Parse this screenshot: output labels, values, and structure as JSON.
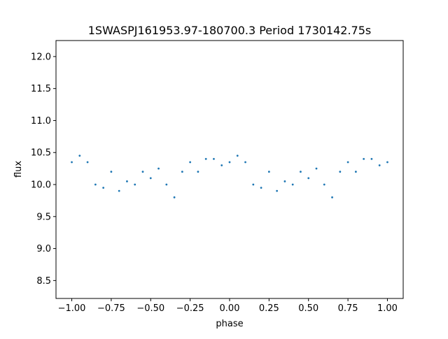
{
  "chart_data": {
    "type": "scatter",
    "title": "1SWASPJ161953.97-180700.3 Period 1730142.75s",
    "xlabel": "phase",
    "ylabel": "flux",
    "xlim": [
      -1.1,
      1.1
    ],
    "ylim": [
      8.22,
      12.25
    ],
    "x_ticks": [
      -1.0,
      -0.75,
      -0.5,
      -0.25,
      0.0,
      0.25,
      0.5,
      0.75,
      1.0
    ],
    "x_tick_labels": [
      "−1.00",
      "−0.75",
      "−0.50",
      "−0.25",
      "0.00",
      "0.25",
      "0.50",
      "0.75",
      "1.00"
    ],
    "y_ticks": [
      8.5,
      9.0,
      9.5,
      10.0,
      10.5,
      11.0,
      11.5,
      12.0
    ],
    "y_tick_labels": [
      "8.5",
      "9.0",
      "9.5",
      "10.0",
      "10.5",
      "11.0",
      "11.5",
      "12.0"
    ],
    "grid": false,
    "marker_color": "#1f77b4",
    "series": [
      {
        "x": [
          -1.0,
          -0.95,
          -0.9,
          -0.85,
          -0.8,
          -0.75,
          -0.7,
          -0.65,
          -0.6,
          -0.55,
          -0.5,
          -0.45,
          -0.4,
          -0.35,
          -0.3,
          -0.25,
          -0.2,
          -0.15,
          -0.1,
          -0.05,
          0.0,
          0.05,
          0.1,
          0.15,
          0.2,
          0.25,
          0.3,
          0.35,
          0.4,
          0.45,
          0.5,
          0.55,
          0.6,
          0.65,
          0.7,
          0.75,
          0.8,
          0.85,
          0.9,
          0.95,
          1.0
        ],
        "y": [
          10.35,
          10.45,
          10.35,
          10.0,
          9.95,
          10.2,
          9.9,
          10.05,
          10.0,
          10.2,
          10.1,
          10.25,
          10.0,
          9.8,
          10.2,
          10.35,
          10.2,
          10.4,
          10.4,
          10.3,
          10.35,
          10.45,
          10.35,
          10.0,
          9.95,
          10.2,
          9.9,
          10.05,
          10.0,
          10.2,
          10.1,
          10.25,
          10.0,
          9.8,
          10.2,
          10.35,
          10.2,
          10.4,
          10.4,
          10.3,
          10.35
        ]
      }
    ]
  }
}
